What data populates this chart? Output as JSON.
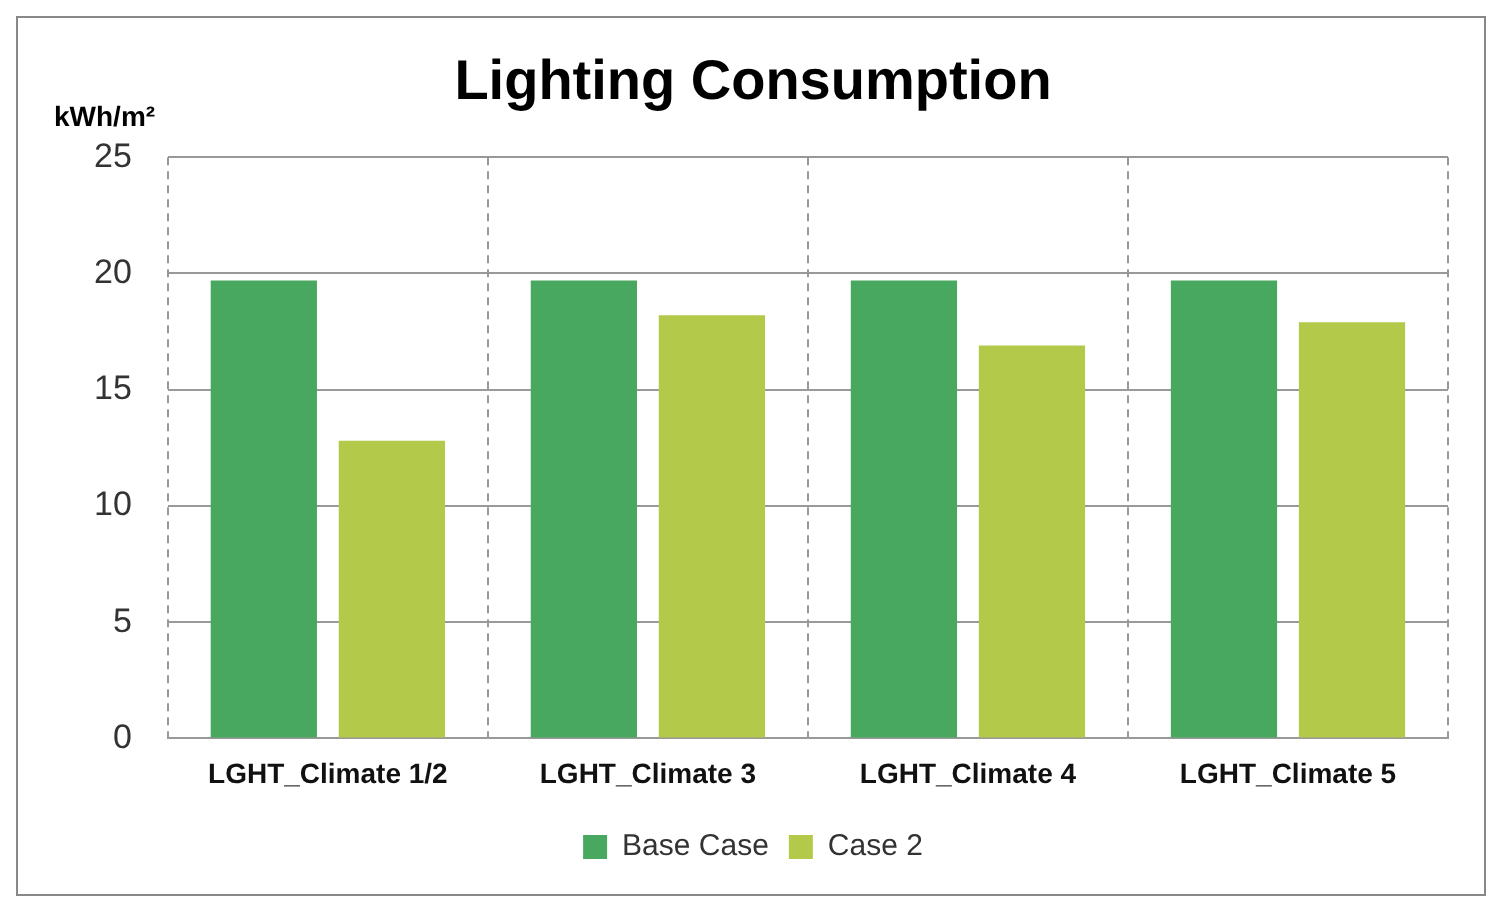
{
  "chart_data": {
    "type": "bar",
    "title": "Lighting Consumption",
    "ylabel": "kWh/m²",
    "categories": [
      "LGHT_Climate 1/2",
      "LGHT_Climate 3",
      "LGHT_Climate 4",
      "LGHT_Climate 5"
    ],
    "series": [
      {
        "name": "Base Case",
        "color": "#48a860",
        "values": [
          19.7,
          19.7,
          19.7,
          19.7
        ]
      },
      {
        "name": "Case 2",
        "color": "#b2c94a",
        "values": [
          12.8,
          18.2,
          16.9,
          17.9
        ]
      }
    ],
    "ylim": [
      0,
      25
    ],
    "yticks": [
      0,
      5,
      10,
      15,
      20,
      25
    ],
    "grid": true,
    "legend": "bottom"
  }
}
